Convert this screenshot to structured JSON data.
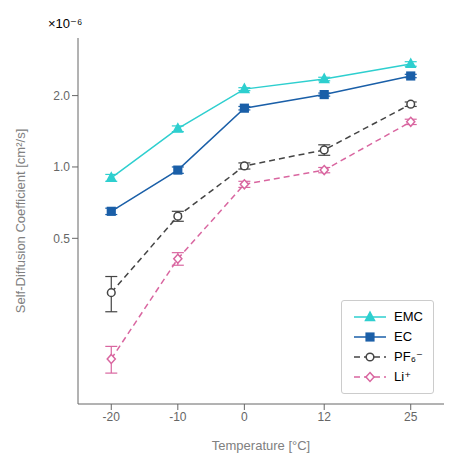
{
  "chart_data": {
    "type": "line",
    "xlabel": "Temperature [°C]",
    "ylabel": "Self-Diffusion Coefficient [cm²/s]",
    "annotations": [
      "×10⁻⁶"
    ],
    "x": [
      -20,
      -10,
      0,
      12,
      25
    ],
    "series": [
      {
        "name": "EMC",
        "color": "#2ecfcf",
        "marker": "triangle",
        "line_style": "solid",
        "values": [
          9e-07,
          1.45e-06,
          2.13e-06,
          2.35e-06,
          2.72e-06
        ],
        "errors": [
          3e-08,
          4e-08,
          3e-08,
          4e-08,
          6e-08
        ]
      },
      {
        "name": "EC",
        "color": "#1a5fa8",
        "marker": "square",
        "line_style": "solid",
        "values": [
          6.5e-07,
          9.7e-07,
          1.77e-06,
          2.02e-06,
          2.42e-06
        ],
        "errors": [
          2e-08,
          3e-08,
          3e-08,
          3e-08,
          4e-08
        ]
      },
      {
        "name": "PF₆⁻",
        "color": "#444444",
        "marker": "circle-open",
        "line_style": "dashed",
        "values": [
          2.95e-07,
          6.2e-07,
          1.01e-06,
          1.18e-06,
          1.84e-06
        ],
        "errors": [
          5e-08,
          3e-08,
          3e-08,
          6e-08,
          4e-08
        ]
      },
      {
        "name": "Li⁺",
        "color": "#d966a0",
        "marker": "diamond-open",
        "line_style": "dashed",
        "values": [
          1.55e-07,
          4.1e-07,
          8.45e-07,
          9.7e-07,
          1.55e-06
        ],
        "errors": [
          2e-08,
          2.5e-08,
          2.5e-08,
          2.5e-08,
          4e-08
        ]
      }
    ],
    "xlim": [
      -25,
      30
    ],
    "xticks": [
      -20,
      -10,
      0,
      12,
      25
    ],
    "ylim": [
      1e-07,
      3.5e-06
    ],
    "yticks": [
      {
        "value": 5e-07,
        "label": "0.5"
      },
      {
        "value": 1e-06,
        "label": "1.0"
      },
      {
        "value": 2e-06,
        "label": "2.0"
      }
    ],
    "log": "y",
    "grid": false,
    "legend": "lower right"
  }
}
